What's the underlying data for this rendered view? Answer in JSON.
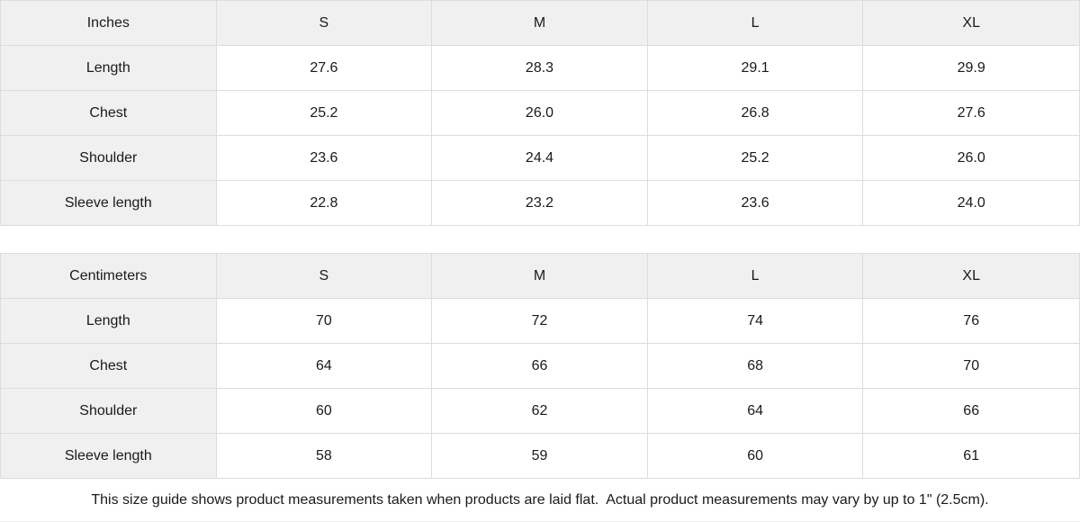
{
  "colors": {
    "header_bg": "#f0f0f0",
    "cell_bg": "#ffffff",
    "border": "#dcdcdc",
    "text": "#1a1a1a"
  },
  "chart_data": [
    {
      "type": "table",
      "unit_label": "Inches",
      "columns": [
        "S",
        "M",
        "L",
        "XL"
      ],
      "rows": [
        {
          "label": "Length",
          "values": [
            "27.6",
            "28.3",
            "29.1",
            "29.9"
          ]
        },
        {
          "label": "Chest",
          "values": [
            "25.2",
            "26.0",
            "26.8",
            "27.6"
          ]
        },
        {
          "label": "Shoulder",
          "values": [
            "23.6",
            "24.4",
            "25.2",
            "26.0"
          ]
        },
        {
          "label": "Sleeve length",
          "values": [
            "22.8",
            "23.2",
            "23.6",
            "24.0"
          ]
        }
      ]
    },
    {
      "type": "table",
      "unit_label": "Centimeters",
      "columns": [
        "S",
        "M",
        "L",
        "XL"
      ],
      "rows": [
        {
          "label": "Length",
          "values": [
            "70",
            "72",
            "74",
            "76"
          ]
        },
        {
          "label": "Chest",
          "values": [
            "64",
            "66",
            "68",
            "70"
          ]
        },
        {
          "label": "Shoulder",
          "values": [
            "60",
            "62",
            "64",
            "66"
          ]
        },
        {
          "label": "Sleeve length",
          "values": [
            "58",
            "59",
            "60",
            "61"
          ]
        }
      ]
    }
  ],
  "footer": {
    "note": "This size guide shows product measurements taken when products are laid flat.  Actual product measurements may vary by up to 1\" (2.5cm)."
  }
}
